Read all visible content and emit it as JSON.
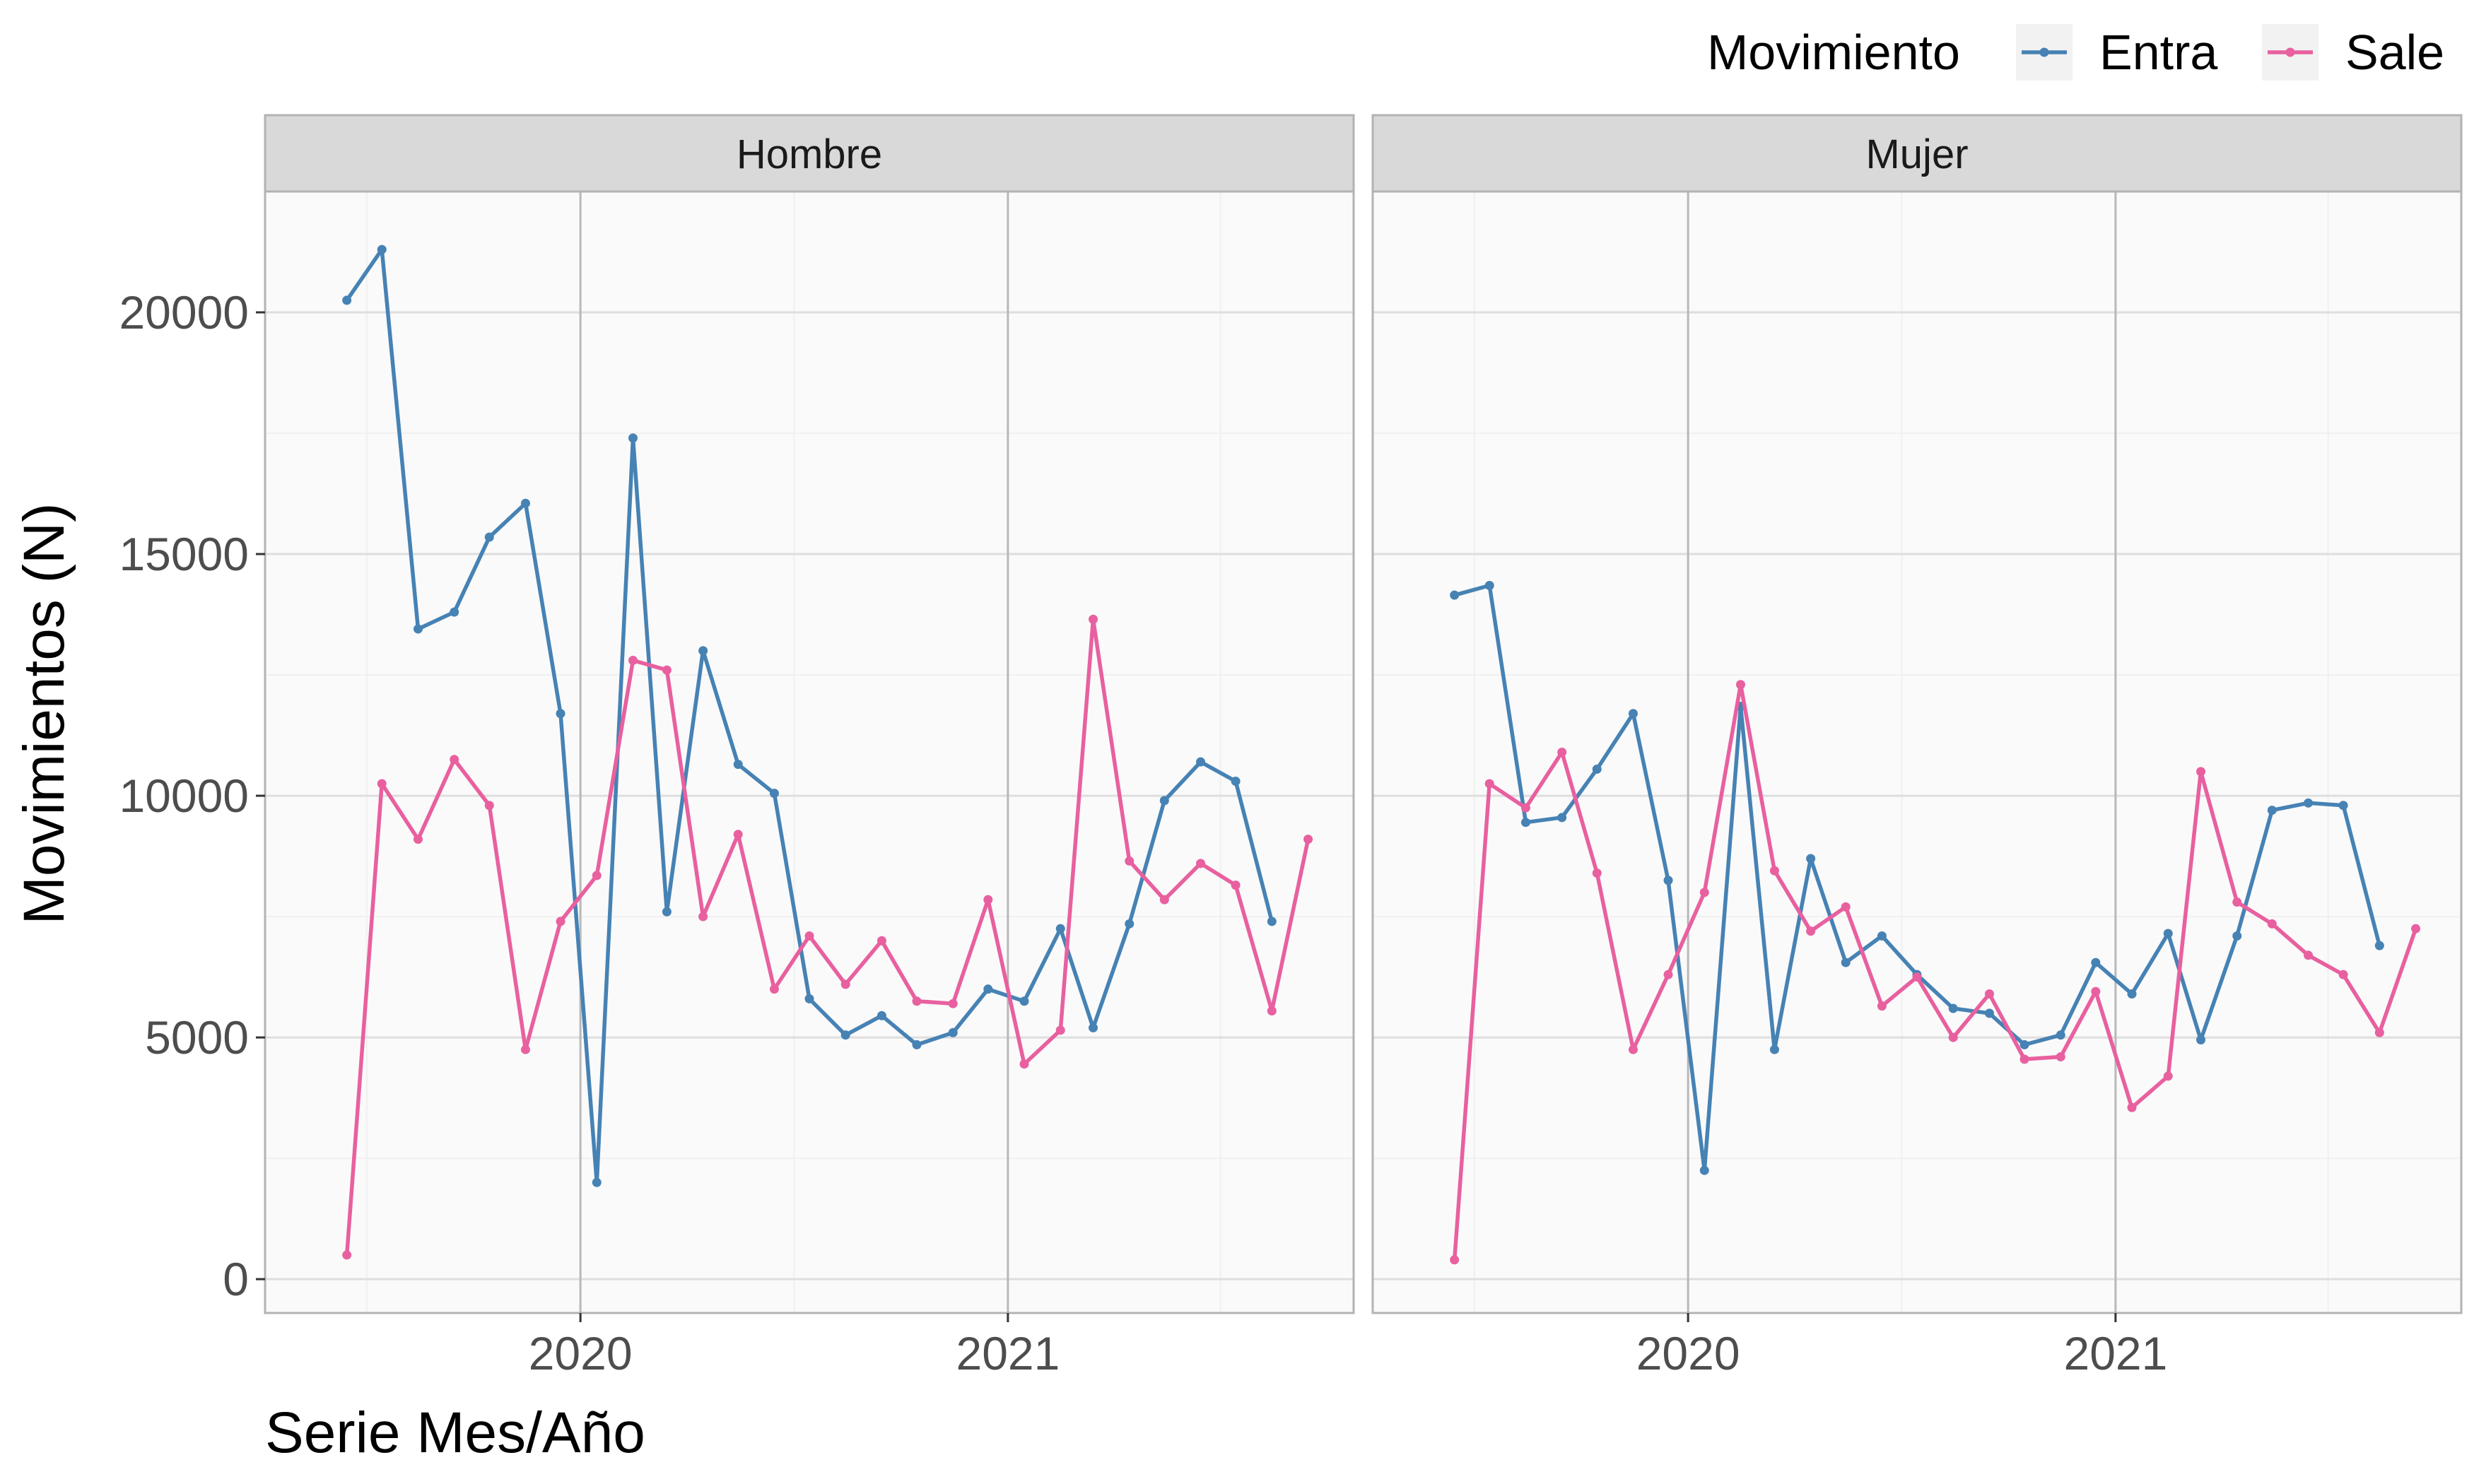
{
  "chart_data": {
    "type": "line",
    "xlabel": "Serie Mes/Año",
    "ylabel": "Movimientos (N)",
    "ylim": [
      -700,
      22500
    ],
    "yticks": [
      0,
      5000,
      10000,
      15000,
      20000
    ],
    "xlim": [
      "2019-04-06",
      "2021-10-24"
    ],
    "xticks": [
      {
        "date": "2020-01-01",
        "label": "2020"
      },
      {
        "date": "2021-01-01",
        "label": "2021"
      }
    ],
    "grid": true,
    "legend": {
      "title": "Movimiento",
      "position": "top-right",
      "entries": [
        {
          "name": "Entra",
          "color": "#4682B4"
        },
        {
          "name": "Sale",
          "color": "#E8609F"
        }
      ]
    },
    "panels": [
      {
        "label": "Hombre",
        "series": [
          {
            "name": "Entra",
            "color": "#4682B4",
            "points": [
              [
                "2019-06",
                20250
              ],
              [
                "2019-07",
                21300
              ],
              [
                "2019-08",
                13450
              ],
              [
                "2019-09",
                13800
              ],
              [
                "2019-10",
                15350
              ],
              [
                "2019-11",
                16050
              ],
              [
                "2019-12",
                11700
              ],
              [
                "2020-01",
                2000
              ],
              [
                "2020-02",
                17400
              ],
              [
                "2020-03",
                7600
              ],
              [
                "2020-04",
                13000
              ],
              [
                "2020-05",
                10650
              ],
              [
                "2020-06",
                10050
              ],
              [
                "2020-07",
                5800
              ],
              [
                "2020-08",
                5050
              ],
              [
                "2020-09",
                5450
              ],
              [
                "2020-10",
                4850
              ],
              [
                "2020-11",
                5100
              ],
              [
                "2020-12",
                6000
              ],
              [
                "2021-01",
                5750
              ],
              [
                "2021-02",
                7250
              ],
              [
                "2021-03",
                5200
              ],
              [
                "2021-04",
                7350
              ],
              [
                "2021-05",
                9900
              ],
              [
                "2021-06",
                10700
              ],
              [
                "2021-07",
                10300
              ],
              [
                "2021-08",
                7400
              ]
            ]
          },
          {
            "name": "Sale",
            "color": "#E8609F",
            "points": [
              [
                "2019-06",
                500
              ],
              [
                "2019-07",
                10250
              ],
              [
                "2019-08",
                9100
              ],
              [
                "2019-09",
                10750
              ],
              [
                "2019-10",
                9800
              ],
              [
                "2019-11",
                4750
              ],
              [
                "2019-12",
                7400
              ],
              [
                "2020-01",
                8350
              ],
              [
                "2020-02",
                12800
              ],
              [
                "2020-03",
                12600
              ],
              [
                "2020-04",
                7500
              ],
              [
                "2020-05",
                9200
              ],
              [
                "2020-06",
                6000
              ],
              [
                "2020-07",
                7100
              ],
              [
                "2020-08",
                6100
              ],
              [
                "2020-09",
                7000
              ],
              [
                "2020-10",
                5750
              ],
              [
                "2020-11",
                5700
              ],
              [
                "2020-12",
                7850
              ],
              [
                "2021-01",
                4450
              ],
              [
                "2021-02",
                5150
              ],
              [
                "2021-03",
                13650
              ],
              [
                "2021-04",
                8650
              ],
              [
                "2021-05",
                7850
              ],
              [
                "2021-06",
                8600
              ],
              [
                "2021-07",
                8150
              ],
              [
                "2021-08",
                5550
              ],
              [
                "2021-09",
                9100
              ]
            ]
          }
        ]
      },
      {
        "label": "Mujer",
        "series": [
          {
            "name": "Entra",
            "color": "#4682B4",
            "points": [
              [
                "2019-06",
                14150
              ],
              [
                "2019-07",
                14350
              ],
              [
                "2019-08",
                9450
              ],
              [
                "2019-09",
                9550
              ],
              [
                "2019-10",
                10550
              ],
              [
                "2019-11",
                11700
              ],
              [
                "2019-12",
                8250
              ],
              [
                "2020-01",
                2250
              ],
              [
                "2020-02",
                11850
              ],
              [
                "2020-03",
                4750
              ],
              [
                "2020-04",
                8700
              ],
              [
                "2020-05",
                6550
              ],
              [
                "2020-06",
                7100
              ],
              [
                "2020-07",
                6300
              ],
              [
                "2020-08",
                5600
              ],
              [
                "2020-09",
                5500
              ],
              [
                "2020-10",
                4850
              ],
              [
                "2020-11",
                5050
              ],
              [
                "2020-12",
                6550
              ],
              [
                "2021-01",
                5900
              ],
              [
                "2021-02",
                7150
              ],
              [
                "2021-03",
                4950
              ],
              [
                "2021-04",
                7100
              ],
              [
                "2021-05",
                9700
              ],
              [
                "2021-06",
                9850
              ],
              [
                "2021-07",
                9800
              ],
              [
                "2021-08",
                6900
              ]
            ]
          },
          {
            "name": "Sale",
            "color": "#E8609F",
            "points": [
              [
                "2019-06",
                400
              ],
              [
                "2019-07",
                10250
              ],
              [
                "2019-08",
                9750
              ],
              [
                "2019-09",
                10900
              ],
              [
                "2019-10",
                8400
              ],
              [
                "2019-11",
                4750
              ],
              [
                "2019-12",
                6300
              ],
              [
                "2020-01",
                8000
              ],
              [
                "2020-02",
                12300
              ],
              [
                "2020-03",
                8450
              ],
              [
                "2020-04",
                7200
              ],
              [
                "2020-05",
                7700
              ],
              [
                "2020-06",
                5650
              ],
              [
                "2020-07",
                6250
              ],
              [
                "2020-08",
                5000
              ],
              [
                "2020-09",
                5900
              ],
              [
                "2020-10",
                4550
              ],
              [
                "2020-11",
                4600
              ],
              [
                "2020-12",
                5950
              ],
              [
                "2021-01",
                3550
              ],
              [
                "2021-02",
                4200
              ],
              [
                "2021-03",
                10500
              ],
              [
                "2021-04",
                7800
              ],
              [
                "2021-05",
                7350
              ],
              [
                "2021-06",
                6700
              ],
              [
                "2021-07",
                6300
              ],
              [
                "2021-08",
                5100
              ],
              [
                "2021-09",
                7250
              ]
            ]
          }
        ]
      }
    ]
  }
}
